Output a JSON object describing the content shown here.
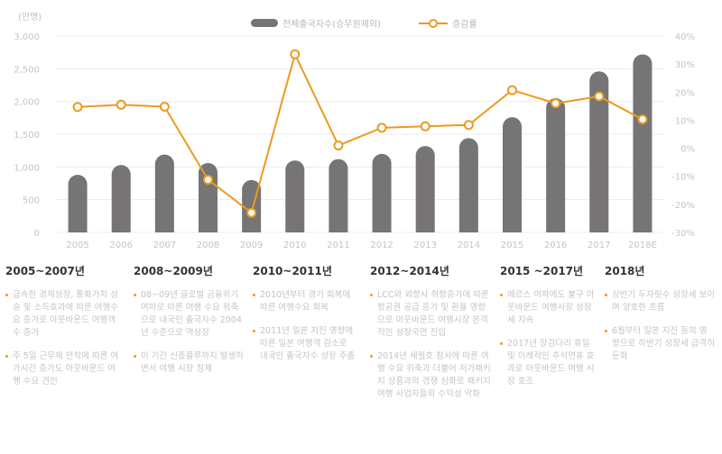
{
  "chart_data": {
    "type": "bar",
    "unit_label": "(만명)",
    "categories": [
      "2005",
      "2006",
      "2007",
      "2008",
      "2009",
      "2010",
      "2011",
      "2012",
      "2013",
      "2014",
      "2015",
      "2016",
      "2017",
      "2018E"
    ],
    "series": [
      {
        "name": "전체출국자수(승무원제외)",
        "type": "bar",
        "values": [
          880,
          1030,
          1190,
          1060,
          800,
          1100,
          1120,
          1200,
          1320,
          1440,
          1760,
          2050,
          2460,
          2720
        ]
      },
      {
        "name": "증감률",
        "type": "line",
        "axis": "right",
        "values": [
          14.7,
          15.5,
          14.8,
          -11.2,
          -23.0,
          33.5,
          1.0,
          7.3,
          7.8,
          8.3,
          20.7,
          16.0,
          18.5,
          10.3
        ]
      }
    ],
    "y_left": {
      "range": [
        0,
        3000
      ],
      "ticks": [
        "0",
        "500",
        "1,000",
        "1,500",
        "2,000",
        "2,500",
        "3,000"
      ],
      "tick_values": [
        0,
        500,
        1000,
        1500,
        2000,
        2500,
        3000
      ]
    },
    "y_right": {
      "range": [
        -30,
        40
      ],
      "ticks": [
        "-30%",
        "-20%",
        "-10%",
        "0%",
        "10%",
        "20%",
        "30%",
        "40%"
      ],
      "tick_values": [
        -30,
        -20,
        -10,
        0,
        10,
        20,
        30,
        40
      ]
    },
    "grid": true,
    "legend_position": "top-center",
    "colors": {
      "bar": "#767474",
      "line": "#ec9a1f",
      "grid": "#ececec",
      "tick": "#c4c4c4"
    }
  },
  "periods": [
    {
      "title": "2005~2007년",
      "bullets": [
        "급속한 경제성장, 통화가치 상승 및 소득효과에 따른 여행수요 증가로 아웃바운드 여행객수 증가",
        "주 5일 근무제 안착에 따른 여가시간 증가도 아웃바운드 여행 수요 견인"
      ]
    },
    {
      "title": "2008~2009년",
      "bullets": [
        "08~09년 글로벌 금융위기 여파로 따른 여행 수요 위축으로 내국인 출국자수 2004년 수준으로 역성장",
        "이 기간 신종플루까지 발생하면서 여행 시장 침체"
      ]
    },
    {
      "title": "2010~2011년",
      "bullets": [
        "2010년부터 경기 회복에 따른 여행수요 회복",
        "2011년 일본 지진 영향에 따른 일본 여행객 감소로 내국인 출국자수 성장 주춤"
      ]
    },
    {
      "title": "2012~2014년",
      "bullets": [
        "LCC와 외항사 취항증가에 따른 항공권 공급 증가 및 환율 영향으로 아웃바운드 여행시장 본격적인 성장국면 진입",
        "2014년 세월호 참사에 따른 여행 수요 위축과 더불어 저가패키지 상품과의 경쟁 심화로 패키지 여행 사업자들의 수익성 악화"
      ]
    },
    {
      "title": "2015 ~2017년",
      "bullets": [
        "메르스 여파에도 불구 아웃바운드 여행시장 성장세 지속",
        "2017년 장검다리 휴일 및 이례적인 추석연휴 효과로 아웃바운드 여행 시장 호조"
      ]
    },
    {
      "title": "2018년",
      "bullets": [
        "상반기 두자릿수 성장세 보이며 양호한 흐름",
        "6월부터 일본 지진 등의 영향으로 하반기 성장세 급격히 둔화"
      ]
    }
  ]
}
